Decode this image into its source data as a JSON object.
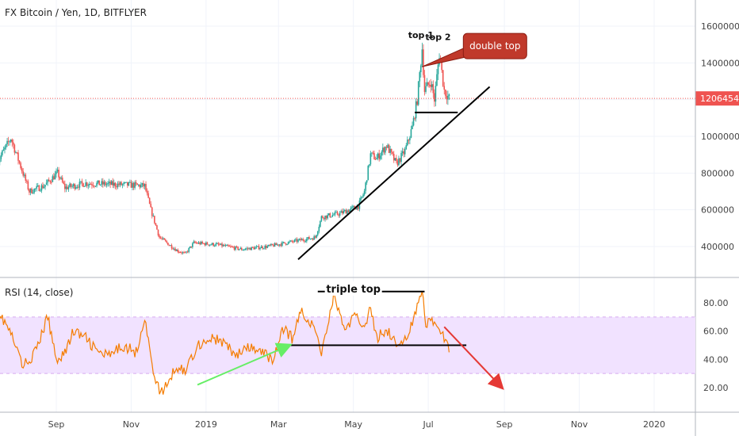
{
  "chart_data": [
    {
      "panel": "price",
      "type": "candlestick",
      "title": "FX Bitcoin / Yen, 1D, BITFLYER",
      "ylim": [
        250000,
        1680000
      ],
      "yticks": [
        {
          "value": 400000,
          "label": "400000"
        },
        {
          "value": 600000,
          "label": "600000"
        },
        {
          "value": 800000,
          "label": "800000"
        },
        {
          "value": 1000000,
          "label": "1000000"
        },
        {
          "value": 1200000,
          "label": "1200000"
        },
        {
          "value": 1400000,
          "label": "1400000"
        },
        {
          "value": 1600000,
          "label": "1600000"
        }
      ],
      "last_price": 1206454,
      "last_price_label": "1206454",
      "colors": {
        "up": "#26a69a",
        "down": "#ef5350",
        "last_price": "#ef5350",
        "label_bg": "#ef5350"
      },
      "close_path": [
        {
          "date": "2018-07-15",
          "close": 860000
        },
        {
          "date": "2018-07-26",
          "close": 990000
        },
        {
          "date": "2018-08-10",
          "close": 700000
        },
        {
          "date": "2018-08-22",
          "close": 730000
        },
        {
          "date": "2018-09-02",
          "close": 800000
        },
        {
          "date": "2018-09-08",
          "close": 720000
        },
        {
          "date": "2018-09-25",
          "close": 745000
        },
        {
          "date": "2018-10-10",
          "close": 740000
        },
        {
          "date": "2018-10-31",
          "close": 735000
        },
        {
          "date": "2018-11-12",
          "close": 730000
        },
        {
          "date": "2018-11-17",
          "close": 600000
        },
        {
          "date": "2018-11-24",
          "close": 450000
        },
        {
          "date": "2018-12-08",
          "close": 380000
        },
        {
          "date": "2018-12-15",
          "close": 360000
        },
        {
          "date": "2018-12-22",
          "close": 420000
        },
        {
          "date": "2019-01-10",
          "close": 410000
        },
        {
          "date": "2019-01-30",
          "close": 385000
        },
        {
          "date": "2019-02-20",
          "close": 400000
        },
        {
          "date": "2019-03-15",
          "close": 430000
        },
        {
          "date": "2019-03-31",
          "close": 450000
        },
        {
          "date": "2019-04-05",
          "close": 560000
        },
        {
          "date": "2019-04-20",
          "close": 580000
        },
        {
          "date": "2019-05-05",
          "close": 620000
        },
        {
          "date": "2019-05-10",
          "close": 700000
        },
        {
          "date": "2019-05-15",
          "close": 900000
        },
        {
          "date": "2019-05-20",
          "close": 880000
        },
        {
          "date": "2019-05-28",
          "close": 950000
        },
        {
          "date": "2019-06-05",
          "close": 850000
        },
        {
          "date": "2019-06-12",
          "close": 920000
        },
        {
          "date": "2019-06-18",
          "close": 1050000
        },
        {
          "date": "2019-06-22",
          "close": 1200000
        },
        {
          "date": "2019-06-26",
          "close": 1480000
        },
        {
          "date": "2019-06-28",
          "close": 1250000
        },
        {
          "date": "2019-07-03",
          "close": 1300000
        },
        {
          "date": "2019-07-06",
          "close": 1200000
        },
        {
          "date": "2019-07-10",
          "close": 1450000
        },
        {
          "date": "2019-07-14",
          "close": 1250000
        },
        {
          "date": "2019-07-18",
          "close": 1206454
        }
      ],
      "annotations": [
        {
          "text": "top 1",
          "date": "2019-06-25",
          "value": 1500000
        },
        {
          "text": "top 2",
          "date": "2019-07-09",
          "value": 1490000
        },
        {
          "text": "double top",
          "date": "2019-08-05",
          "value": 1500000,
          "bg": "#c0392b"
        }
      ],
      "trendlines": [
        {
          "name": "support-trendline",
          "from": {
            "date": "2019-03-17",
            "value": 330000
          },
          "to": {
            "date": "2019-08-20",
            "value": 1270000
          },
          "color": "#000000"
        },
        {
          "name": "neckline",
          "from": {
            "date": "2019-06-20",
            "value": 1130000
          },
          "to": {
            "date": "2019-07-25",
            "value": 1130000
          },
          "color": "#000000"
        }
      ]
    },
    {
      "panel": "indicator",
      "type": "line",
      "title": "RSI (14, close)",
      "ylim": [
        8,
        95
      ],
      "yticks": [
        {
          "value": 20,
          "label": "20.00"
        },
        {
          "value": 40,
          "label": "40.00"
        },
        {
          "value": 60,
          "label": "60.00"
        },
        {
          "value": 80,
          "label": "80.00"
        }
      ],
      "bands": {
        "upper": 70,
        "lower": 30,
        "fill": "#f1e2ff",
        "line": "#d6aaf0"
      },
      "colors": {
        "line": "#f57c00"
      },
      "x": [
        "2018-07-15",
        "2018-07-25",
        "2018-08-05",
        "2018-08-15",
        "2018-08-25",
        "2018-09-01",
        "2018-09-08",
        "2018-09-15",
        "2018-09-25",
        "2018-10-05",
        "2018-10-15",
        "2018-10-25",
        "2018-11-05",
        "2018-11-12",
        "2018-11-18",
        "2018-11-25",
        "2018-12-02",
        "2018-12-08",
        "2018-12-15",
        "2018-12-25",
        "2019-01-05",
        "2019-01-15",
        "2019-01-25",
        "2019-02-05",
        "2019-02-15",
        "2019-02-25",
        "2019-03-05",
        "2019-03-12",
        "2019-03-20",
        "2019-03-31",
        "2019-04-05",
        "2019-04-15",
        "2019-04-25",
        "2019-05-01",
        "2019-05-10",
        "2019-05-15",
        "2019-05-20",
        "2019-05-28",
        "2019-06-05",
        "2019-06-12",
        "2019-06-18",
        "2019-06-26",
        "2019-06-29",
        "2019-07-03",
        "2019-07-09",
        "2019-07-14",
        "2019-07-18"
      ],
      "values": [
        75,
        60,
        35,
        45,
        70,
        40,
        45,
        60,
        55,
        45,
        42,
        50,
        45,
        70,
        35,
        15,
        25,
        35,
        32,
        50,
        55,
        52,
        43,
        48,
        45,
        40,
        62,
        55,
        75,
        60,
        45,
        85,
        60,
        70,
        65,
        75,
        55,
        62,
        50,
        55,
        65,
        88,
        63,
        70,
        60,
        55,
        45
      ],
      "annotations": [
        {
          "text": "triple top",
          "date": "2019-05-01",
          "value": 89
        }
      ],
      "trendlines": [
        {
          "name": "rsi-support-line",
          "from": {
            "date": "2019-03-10",
            "value": 50
          },
          "to": {
            "date": "2019-08-01",
            "value": 50
          },
          "color": "#000000"
        },
        {
          "name": "rsi-triple-top-line",
          "from": {
            "date": "2019-04-02",
            "value": 88
          },
          "to": {
            "date": "2019-06-28",
            "value": 88
          },
          "color": "#000000"
        },
        {
          "name": "green-arrow",
          "from": {
            "date": "2018-12-25",
            "value": 22
          },
          "to": {
            "date": "2019-03-10",
            "value": 50
          },
          "color": "#66ee66"
        },
        {
          "name": "red-arrow",
          "from": {
            "date": "2019-07-14",
            "value": 63
          },
          "to": {
            "date": "2019-08-30",
            "value": 20
          },
          "color": "#e53935"
        }
      ]
    }
  ],
  "x_axis": {
    "ticks": [
      {
        "date": "2018-09-01",
        "label": "Sep"
      },
      {
        "date": "2018-11-01",
        "label": "Nov"
      },
      {
        "date": "2019-01-01",
        "label": "2019"
      },
      {
        "date": "2019-03-01",
        "label": "Mar"
      },
      {
        "date": "2019-05-01",
        "label": "May"
      },
      {
        "date": "2019-07-01",
        "label": "Jul"
      },
      {
        "date": "2019-09-01",
        "label": "Sep"
      },
      {
        "date": "2019-11-01",
        "label": "Nov"
      },
      {
        "date": "2020-01-01",
        "label": "2020"
      }
    ]
  }
}
